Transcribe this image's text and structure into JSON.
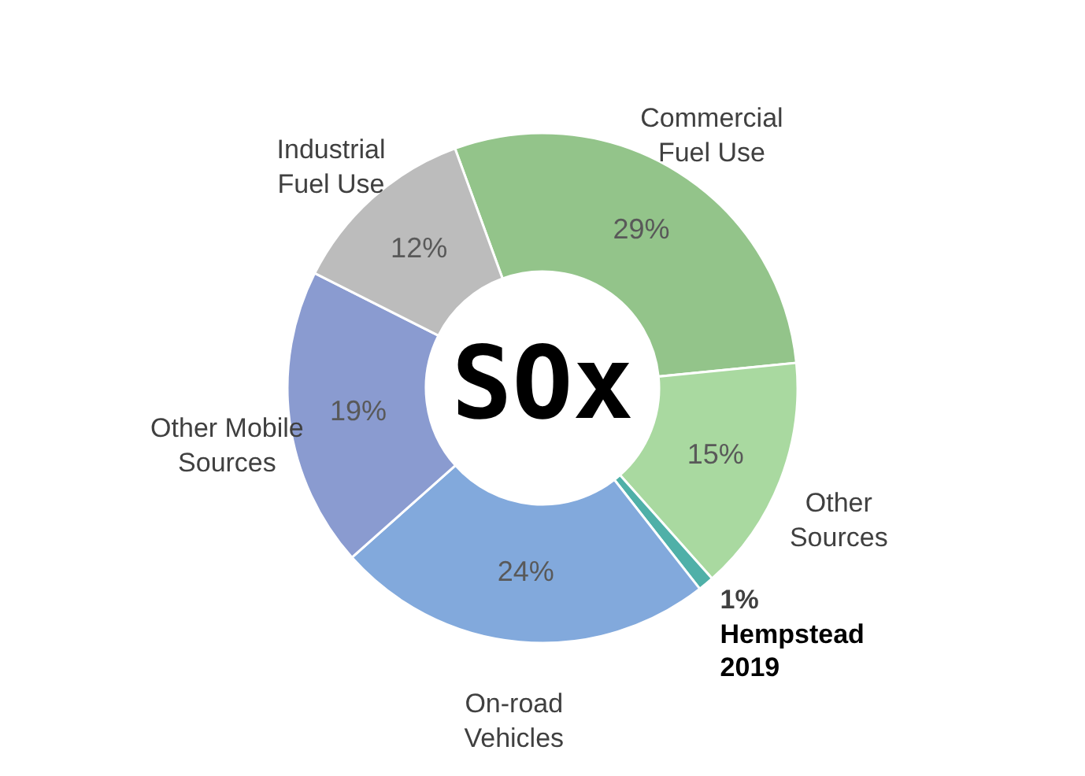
{
  "chart_data": {
    "type": "donut",
    "title": "SOx",
    "categories": [
      "Commercial Fuel Use",
      "Other Sources",
      "Hempstead 2019",
      "On-road Vehicles",
      "Other Mobile Sources",
      "Industrial Fuel Use"
    ],
    "values": [
      29,
      15,
      1,
      24,
      19,
      12
    ],
    "value_labels": [
      "29%",
      "15%",
      "1%",
      "24%",
      "19%",
      "12%"
    ],
    "colors": [
      "#93c48a",
      "#a9d9a0",
      "#4fb0a8",
      "#82a9dc",
      "#8a9bd0",
      "#bcbcbc"
    ]
  }
}
